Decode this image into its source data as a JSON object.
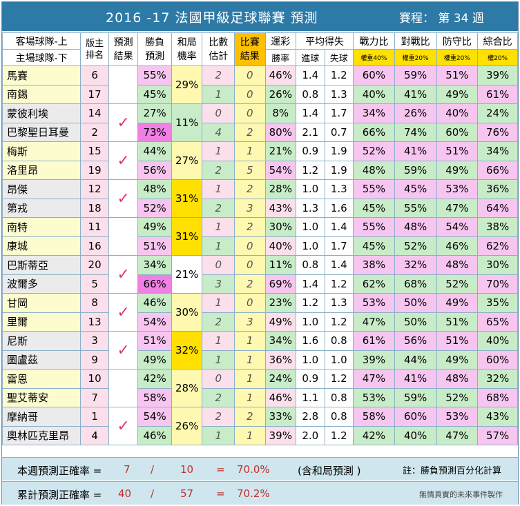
{
  "header": {
    "title": "2016 -17  法國甲級足球聯賽  預測",
    "schedule": "賽程： 第 34 週"
  },
  "columns": {
    "team_top": "客場球隊-上",
    "team_bottom": "主場球隊-下",
    "rank": "版主排名",
    "pred": "預測結果",
    "winlose": "勝負預測",
    "draw": "和局機率",
    "est": "比數估計",
    "result": "比賽結果",
    "lottery": "運彩",
    "lottery_sub": "勝率",
    "avg": "平均得失",
    "goals_for": "進球",
    "goals_against": "失球",
    "power": "戰力比",
    "power_w": "權重40%",
    "h2h": "對戰比",
    "h2h_w": "權重20%",
    "defense": "防守比",
    "defense_w": "權重20%",
    "total": "綜合比",
    "total_w": "權20%"
  },
  "matches": [
    {
      "draw": "29%",
      "draw_style": "yel",
      "check": "",
      "rows": [
        {
          "team": "馬賽",
          "rank": "6",
          "wl": "55%",
          "wls": "pnk",
          "est": "2",
          "res": "0",
          "lot": "46%",
          "lots": "lpk",
          "gf": "1.4",
          "ga": "1.2",
          "p": "60%",
          "h": "59%",
          "d": "51%",
          "t": "39%"
        },
        {
          "team": "南錫",
          "rank": "17",
          "wl": "45%",
          "wls": "grn",
          "est": "1",
          "res": "0",
          "lot": "26%",
          "lots": "grn",
          "gf": "0.8",
          "ga": "1.3",
          "p": "40%",
          "h": "41%",
          "d": "49%",
          "t": "61%"
        }
      ]
    },
    {
      "draw": "11%",
      "draw_style": "grn",
      "check": "✓",
      "rows": [
        {
          "team": "蒙彼利埃",
          "rank": "14",
          "wl": "27%",
          "wls": "grn",
          "est": "0",
          "res": "0",
          "lot": "8%",
          "lots": "grn",
          "gf": "1.4",
          "ga": "1.7",
          "p": "34%",
          "h": "26%",
          "d": "40%",
          "t": "24%"
        },
        {
          "team": "巴黎聖日耳曼",
          "rank": "2",
          "wl": "73%",
          "wls": "mag",
          "est": "4",
          "res": "2",
          "lot": "80%",
          "lots": "pnk",
          "gf": "2.1",
          "ga": "0.7",
          "p": "66%",
          "h": "74%",
          "d": "60%",
          "t": "76%"
        }
      ]
    },
    {
      "draw": "27%",
      "draw_style": "yel",
      "check": "✓",
      "rows": [
        {
          "team": "梅斯",
          "rank": "15",
          "wl": "44%",
          "wls": "grn",
          "est": "1",
          "res": "1",
          "lot": "21%",
          "lots": "grn",
          "gf": "0.9",
          "ga": "1.9",
          "p": "52%",
          "h": "41%",
          "d": "51%",
          "t": "34%"
        },
        {
          "team": "洛里昂",
          "rank": "19",
          "wl": "56%",
          "wls": "pnk",
          "est": "2",
          "res": "5",
          "lot": "54%",
          "lots": "pnk",
          "gf": "1.2",
          "ga": "1.9",
          "p": "48%",
          "h": "59%",
          "d": "49%",
          "t": "66%"
        }
      ]
    },
    {
      "draw": "31%",
      "draw_style": "gold",
      "check": "✓",
      "rows": [
        {
          "team": "昂傑",
          "rank": "12",
          "wl": "48%",
          "wls": "grn",
          "est": "1",
          "res": "2",
          "lot": "28%",
          "lots": "grn",
          "gf": "1.0",
          "ga": "1.3",
          "p": "55%",
          "h": "45%",
          "d": "53%",
          "t": "36%"
        },
        {
          "team": "第戎",
          "rank": "18",
          "wl": "52%",
          "wls": "pnk",
          "est": "2",
          "res": "3",
          "lot": "43%",
          "lots": "lpk",
          "gf": "1.3",
          "ga": "1.6",
          "p": "45%",
          "h": "55%",
          "d": "47%",
          "t": "64%"
        }
      ]
    },
    {
      "draw": "31%",
      "draw_style": "gold",
      "check": "",
      "rows": [
        {
          "team": "南特",
          "rank": "11",
          "wl": "49%",
          "wls": "grn",
          "est": "1",
          "res": "2",
          "lot": "30%",
          "lots": "grn",
          "gf": "1.0",
          "ga": "1.4",
          "p": "55%",
          "h": "48%",
          "d": "54%",
          "t": "38%"
        },
        {
          "team": "康城",
          "rank": "16",
          "wl": "51%",
          "wls": "pnk",
          "est": "1",
          "res": "0",
          "lot": "40%",
          "lots": "lpk",
          "gf": "1.0",
          "ga": "1.7",
          "p": "45%",
          "h": "52%",
          "d": "46%",
          "t": "62%"
        }
      ]
    },
    {
      "draw": "21%",
      "draw_style": "",
      "check": "✓",
      "rows": [
        {
          "team": "巴斯蒂亞",
          "rank": "20",
          "wl": "34%",
          "wls": "grn",
          "est": "0",
          "res": "0",
          "lot": "11%",
          "lots": "grn",
          "gf": "0.8",
          "ga": "1.4",
          "p": "38%",
          "h": "32%",
          "d": "48%",
          "t": "30%"
        },
        {
          "team": "波爾多",
          "rank": "5",
          "wl": "66%",
          "wls": "mag",
          "est": "3",
          "res": "2",
          "lot": "69%",
          "lots": "pnk",
          "gf": "1.4",
          "ga": "1.2",
          "p": "62%",
          "h": "68%",
          "d": "52%",
          "t": "70%"
        }
      ]
    },
    {
      "draw": "30%",
      "draw_style": "yel",
      "check": "✓",
      "rows": [
        {
          "team": "甘岡",
          "rank": "8",
          "wl": "46%",
          "wls": "grn",
          "est": "1",
          "res": "0",
          "lot": "23%",
          "lots": "grn",
          "gf": "1.2",
          "ga": "1.3",
          "p": "53%",
          "h": "50%",
          "d": "49%",
          "t": "35%"
        },
        {
          "team": "里爾",
          "rank": "13",
          "wl": "54%",
          "wls": "pnk",
          "est": "2",
          "res": "3",
          "lot": "49%",
          "lots": "lpk",
          "gf": "1.0",
          "ga": "1.2",
          "p": "47%",
          "h": "50%",
          "d": "51%",
          "t": "65%"
        }
      ]
    },
    {
      "draw": "32%",
      "draw_style": "gold",
      "check": "✓",
      "rows": [
        {
          "team": "尼斯",
          "rank": "3",
          "wl": "51%",
          "wls": "pnk",
          "est": "1",
          "res": "1",
          "lot": "34%",
          "lots": "grn",
          "gf": "1.6",
          "ga": "0.8",
          "p": "61%",
          "h": "56%",
          "d": "51%",
          "t": "40%"
        },
        {
          "team": "圖盧茲",
          "rank": "9",
          "wl": "49%",
          "wls": "grn",
          "est": "1",
          "res": "1",
          "lot": "36%",
          "lots": "lpk",
          "gf": "1.0",
          "ga": "1.0",
          "p": "39%",
          "h": "44%",
          "d": "49%",
          "t": "60%"
        }
      ]
    },
    {
      "draw": "28%",
      "draw_style": "yel",
      "check": "",
      "rows": [
        {
          "team": "雷恩",
          "rank": "10",
          "wl": "42%",
          "wls": "grn",
          "est": "0",
          "res": "1",
          "lot": "24%",
          "lots": "grn",
          "gf": "0.9",
          "ga": "1.2",
          "p": "47%",
          "h": "41%",
          "d": "48%",
          "t": "32%"
        },
        {
          "team": "聖艾蒂安",
          "rank": "7",
          "wl": "58%",
          "wls": "pnk",
          "est": "2",
          "res": "1",
          "lot": "46%",
          "lots": "lpk",
          "gf": "1.1",
          "ga": "0.8",
          "p": "53%",
          "h": "59%",
          "d": "52%",
          "t": "68%"
        }
      ]
    },
    {
      "draw": "26%",
      "draw_style": "yel",
      "check": "✓",
      "rows": [
        {
          "team": "摩納哥",
          "rank": "1",
          "wl": "54%",
          "wls": "pnk",
          "est": "2",
          "res": "2",
          "lot": "33%",
          "lots": "grn",
          "gf": "2.8",
          "ga": "0.8",
          "p": "58%",
          "h": "60%",
          "d": "53%",
          "t": "43%"
        },
        {
          "team": "奧林匹克里昂",
          "rank": "4",
          "wl": "46%",
          "wls": "grn",
          "est": "1",
          "res": "1",
          "lot": "39%",
          "lots": "lpk",
          "gf": "2.0",
          "ga": "1.2",
          "p": "42%",
          "h": "40%",
          "d": "47%",
          "t": "57%"
        }
      ]
    }
  ],
  "footer": {
    "week_label": "本週預測正確率 =",
    "week_correct": "7",
    "slash": "/",
    "week_total": "10",
    "eq": "=",
    "week_rate": "70.0%",
    "week_note": "(含和局預測 )",
    "note": "註：勝負預測百分化計算",
    "cum_label": "累計預測正確率 =",
    "cum_correct": "40",
    "cum_total": "57",
    "cum_rate": "70.2%",
    "credit": "無情真實的未來事件製作"
  }
}
